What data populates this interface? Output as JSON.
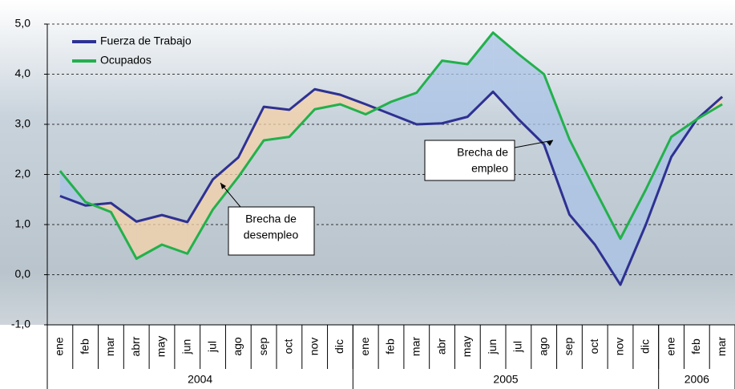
{
  "chart_data": {
    "type": "line",
    "categories": [
      "ene",
      "feb",
      "mar",
      "abrr",
      "may",
      "jun",
      "jul",
      "ago",
      "sep",
      "oct",
      "nov",
      "dic",
      "ene",
      "feb",
      "mar",
      "abr",
      "may",
      "jun",
      "jul",
      "ago",
      "sep",
      "oct",
      "nov",
      "dic",
      "ene",
      "feb",
      "mar"
    ],
    "years": [
      {
        "label": "2004",
        "start": 0,
        "end": 11
      },
      {
        "label": "2005",
        "start": 12,
        "end": 23
      },
      {
        "label": "2006",
        "start": 24,
        "end": 26
      }
    ],
    "series": [
      {
        "name": "Fuerza de Trabajo",
        "color": "#2e3192",
        "values": [
          1.57,
          1.38,
          1.43,
          1.06,
          1.19,
          1.05,
          1.9,
          2.34,
          3.35,
          3.29,
          3.7,
          3.59,
          3.4,
          3.2,
          3.0,
          3.02,
          3.15,
          3.65,
          3.1,
          2.6,
          1.2,
          0.6,
          -0.2,
          1.0,
          2.35,
          3.1,
          3.55
        ]
      },
      {
        "name": "Ocupados",
        "color": "#22b14c",
        "values": [
          2.07,
          1.45,
          1.25,
          0.32,
          0.6,
          0.42,
          1.3,
          1.95,
          2.68,
          2.75,
          3.3,
          3.4,
          3.2,
          3.45,
          3.63,
          4.27,
          4.2,
          4.83,
          4.4,
          4.0,
          2.7,
          1.7,
          0.72,
          1.7,
          2.75,
          3.1,
          3.4
        ]
      }
    ],
    "ylim": [
      -1,
      5
    ],
    "yticks": [
      {
        "value": -1,
        "label": "-1,0"
      },
      {
        "value": 0,
        "label": "0,0"
      },
      {
        "value": 1,
        "label": "1,0"
      },
      {
        "value": 2,
        "label": "2,0"
      },
      {
        "value": 3,
        "label": "3,0"
      },
      {
        "value": 4,
        "label": "4,0"
      },
      {
        "value": 5,
        "label": "5,0"
      }
    ],
    "grid": true,
    "annotations": [
      {
        "lines": [
          "Brecha de",
          "desempleo"
        ]
      },
      {
        "lines": [
          "Brecha de",
          "empleo"
        ]
      }
    ]
  }
}
